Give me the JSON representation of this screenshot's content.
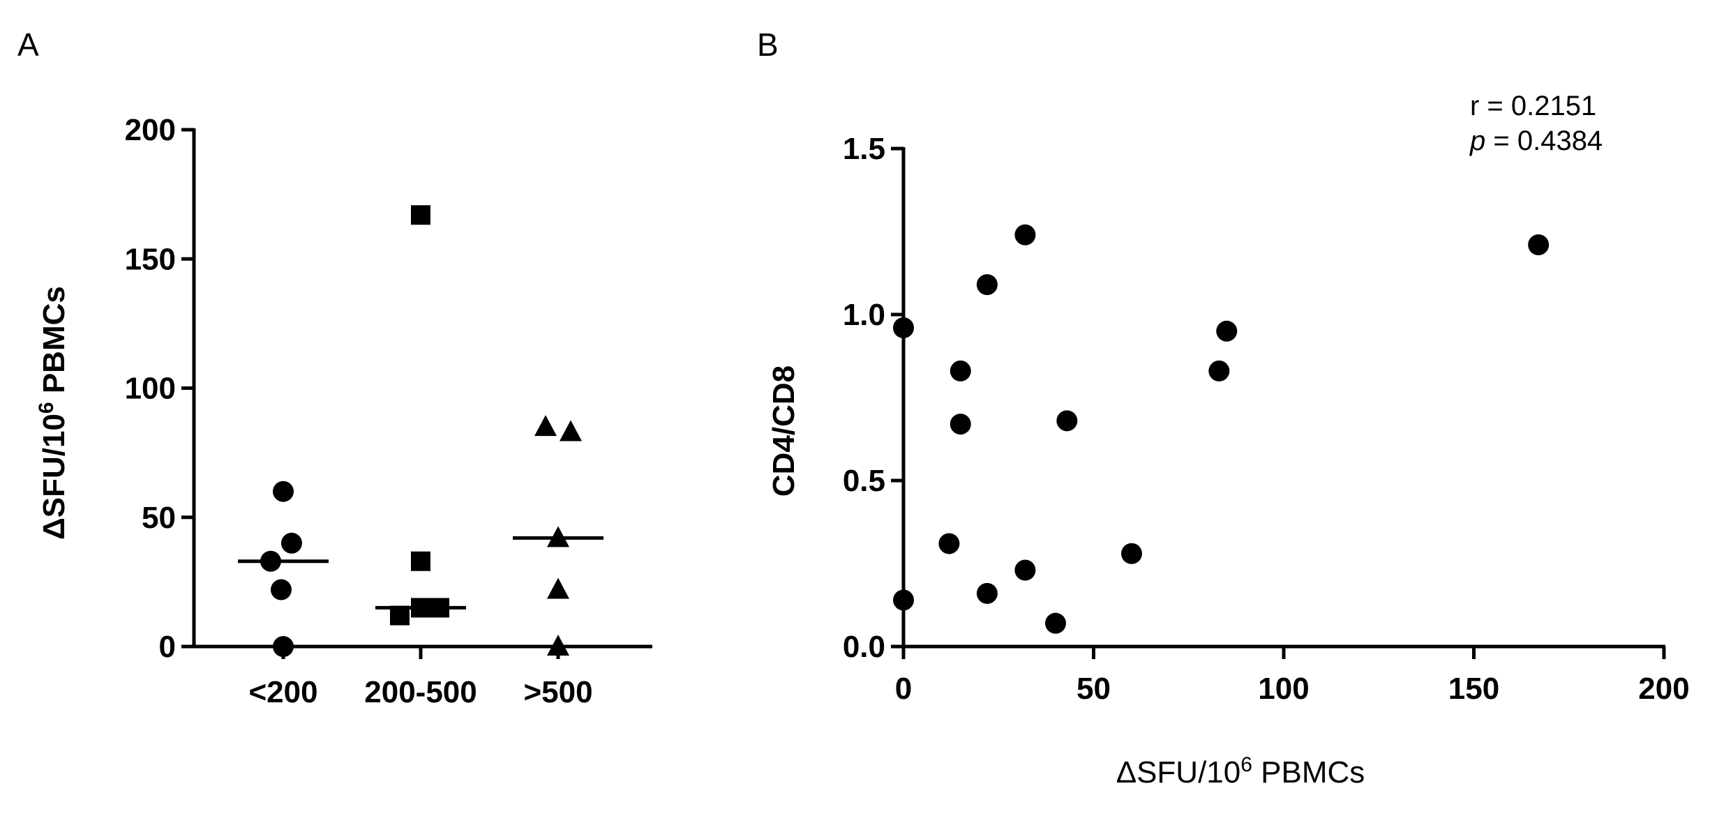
{
  "chart_data": [
    {
      "panel": "A",
      "type": "scatter",
      "subtype": "dot-plot-with-median",
      "ylabel_main": "ΔSFU/10",
      "ylabel_sup": "6",
      "ylabel_tail": " PBMCs",
      "ylim": [
        0,
        200
      ],
      "yticks": [
        "0",
        "50",
        "100",
        "150",
        "200"
      ],
      "yticks_values": [
        0,
        50,
        100,
        150,
        200
      ],
      "categories": [
        "<200",
        "200-500",
        ">500"
      ],
      "grid": false,
      "series": [
        {
          "category": "<200",
          "marker": "circle",
          "points": [
            {
              "x": 0.0,
              "y": 60
            },
            {
              "x": -0.3,
              "y": 33
            },
            {
              "x": 0.2,
              "y": 40
            },
            {
              "x": -0.05,
              "y": 22
            },
            {
              "x": 0.0,
              "y": 0
            }
          ],
          "median": 33
        },
        {
          "category": "200-500",
          "marker": "square",
          "points": [
            {
              "x": 0.0,
              "y": 167
            },
            {
              "x": 0.0,
              "y": 33
            },
            {
              "x": -0.5,
              "y": 12
            },
            {
              "x": 0.0,
              "y": 15
            },
            {
              "x": 0.45,
              "y": 15
            }
          ],
          "median": 15
        },
        {
          "category": ">500",
          "marker": "triangle",
          "points": [
            {
              "x": -0.3,
              "y": 85
            },
            {
              "x": 0.3,
              "y": 83
            },
            {
              "x": 0.0,
              "y": 42
            },
            {
              "x": 0.0,
              "y": 22
            },
            {
              "x": 0.0,
              "y": 0
            }
          ],
          "median": 42
        }
      ]
    },
    {
      "panel": "B",
      "type": "scatter",
      "xlabel_main": "ΔSFU/10",
      "xlabel_sup": "6",
      "xlabel_tail": " PBMCs",
      "ylabel": "CD4/CD8",
      "xlim": [
        0,
        200
      ],
      "ylim": [
        0,
        1.5
      ],
      "xticks": [
        "0",
        "50",
        "100",
        "150",
        "200"
      ],
      "xticks_values": [
        0,
        50,
        100,
        150,
        200
      ],
      "yticks": [
        "0.0",
        "0.5",
        "1.0",
        "1.5"
      ],
      "yticks_values": [
        0,
        0.5,
        1.0,
        1.5
      ],
      "grid": false,
      "annotation_r": "r = 0.2151",
      "annotation_p_symbol": "p",
      "annotation_p_value": " = 0.4384",
      "points": [
        {
          "x": 0,
          "y": 0.96
        },
        {
          "x": 0,
          "y": 0.14
        },
        {
          "x": 12,
          "y": 0.31
        },
        {
          "x": 15,
          "y": 0.83
        },
        {
          "x": 15,
          "y": 0.67
        },
        {
          "x": 22,
          "y": 1.09
        },
        {
          "x": 22,
          "y": 0.16
        },
        {
          "x": 32,
          "y": 1.24
        },
        {
          "x": 32,
          "y": 0.23
        },
        {
          "x": 40,
          "y": 0.07
        },
        {
          "x": 43,
          "y": 0.68
        },
        {
          "x": 60,
          "y": 0.28
        },
        {
          "x": 83,
          "y": 0.83
        },
        {
          "x": 85,
          "y": 0.95
        },
        {
          "x": 167,
          "y": 1.21
        }
      ]
    }
  ],
  "panels": {
    "a_label": "A",
    "b_label": "B"
  }
}
